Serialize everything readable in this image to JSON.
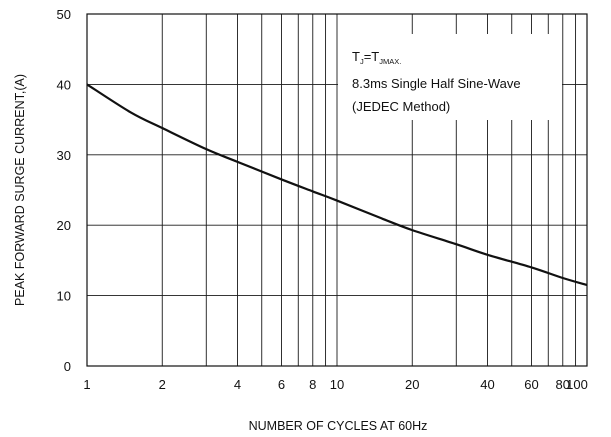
{
  "chart_data": {
    "type": "line",
    "xlabel": "NUMBER OF CYCLES AT 60Hz",
    "ylabel": "PEAK FORWARD SURGE CURRENT,(A)",
    "x_scale": "log",
    "xlim": [
      1,
      100
    ],
    "ylim": [
      0,
      50
    ],
    "x_ticks": [
      1,
      2,
      4,
      6,
      8,
      10,
      20,
      40,
      60,
      80,
      100
    ],
    "x_tick_labels": [
      "1",
      "2",
      "4",
      "6",
      "8",
      "10",
      "20",
      "40",
      "60",
      "80",
      "100"
    ],
    "x_gridlines": [
      1,
      2,
      3,
      4,
      5,
      6,
      7,
      8,
      9,
      10,
      20,
      30,
      40,
      50,
      60,
      70,
      80,
      90,
      100
    ],
    "y_ticks": [
      0,
      10,
      20,
      30,
      40,
      50
    ],
    "y_tick_labels": [
      "0",
      "10",
      "20",
      "30",
      "40",
      "50"
    ],
    "grid": true,
    "legend": "none",
    "series": [
      {
        "x": [
          1,
          1.5,
          2,
          3,
          4,
          6,
          8,
          10,
          15,
          20,
          30,
          40,
          60,
          80,
          100
        ],
        "y": [
          40,
          36,
          33.8,
          30.8,
          29,
          26.5,
          24.8,
          23.5,
          21,
          19.3,
          17.3,
          15.8,
          14,
          12.5,
          11.5
        ]
      }
    ],
    "annotation": {
      "line1_main": "T",
      "line1_sub1": "J",
      "line1_mid": "=T",
      "line1_sub2": "JMAX.",
      "line2": "8.3ms Single Half Sine-Wave",
      "line3": "(JEDEC Method)"
    },
    "colors": {
      "line": "#111111",
      "grid": "#1a1a1a",
      "background": "#ffffff"
    }
  }
}
